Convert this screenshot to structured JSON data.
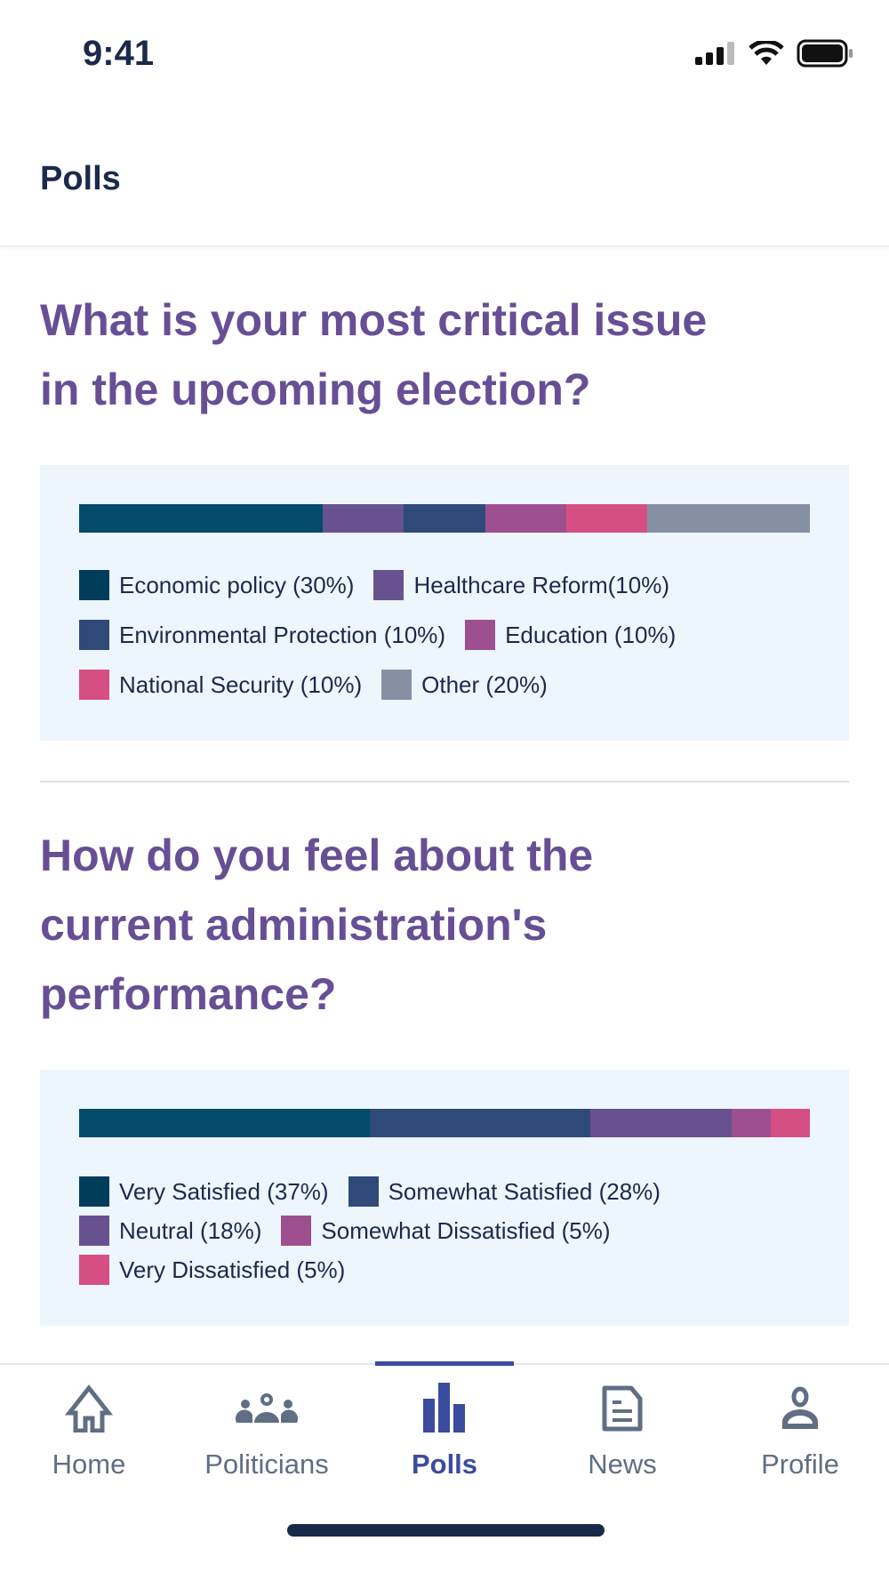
{
  "status": {
    "time": "9:41"
  },
  "header": {
    "title": "Polls"
  },
  "polls": [
    {
      "title_line1": "What is your most critical issue",
      "title_line2": "in the upcoming election?",
      "title_line3": "",
      "options": [
        {
          "label": "Economic policy (30%)",
          "value": 30,
          "color": "#024b6b",
          "swatch": "#013d5a"
        },
        {
          "label": "Healthcare Reform(10%)",
          "value": 10,
          "color": "#67528f",
          "swatch": "#67528f"
        },
        {
          "label": "Environmental Protection (10%)",
          "value": 10,
          "color": "#2f4a78",
          "swatch": "#2f4a78"
        },
        {
          "label": "Education (10%)",
          "value": 10,
          "color": "#9e4f8f",
          "swatch": "#9e4f8f"
        },
        {
          "label": "National Security (10%)",
          "value": 10,
          "color": "#d64f84",
          "swatch": "#d64f84"
        },
        {
          "label": "Other (20%)",
          "value": 20,
          "color": "#8591a3",
          "swatch": "#8591a3"
        }
      ]
    },
    {
      "title_line1": "How do you feel about the",
      "title_line2": "current administration's",
      "title_line3": "performance?",
      "options": [
        {
          "label": "Very Satisfied (37%)",
          "value": 37,
          "color": "#024b6b",
          "swatch": "#013d5a"
        },
        {
          "label": "Somewhat Satisfied (28%)",
          "value": 28,
          "color": "#2f4a78",
          "swatch": "#2f4a78"
        },
        {
          "label": "Neutral (18%)",
          "value": 18,
          "color": "#67528f",
          "swatch": "#67528f"
        },
        {
          "label": "Somewhat Dissatisfied (5%)",
          "value": 5,
          "color": "#9e4f8f",
          "swatch": "#9e4f8f"
        },
        {
          "label": "Very Dissatisfied (5%)",
          "value": 5,
          "color": "#d64f84",
          "swatch": "#d64f84"
        }
      ]
    }
  ],
  "nav": {
    "items": [
      {
        "label": "Home",
        "icon": "home-icon"
      },
      {
        "label": "Politicians",
        "icon": "people-icon"
      },
      {
        "label": "Polls",
        "icon": "bar-chart-icon"
      },
      {
        "label": "News",
        "icon": "document-icon"
      },
      {
        "label": "Profile",
        "icon": "person-icon"
      }
    ],
    "active": "Polls",
    "accent": "#3b4b9e"
  }
}
